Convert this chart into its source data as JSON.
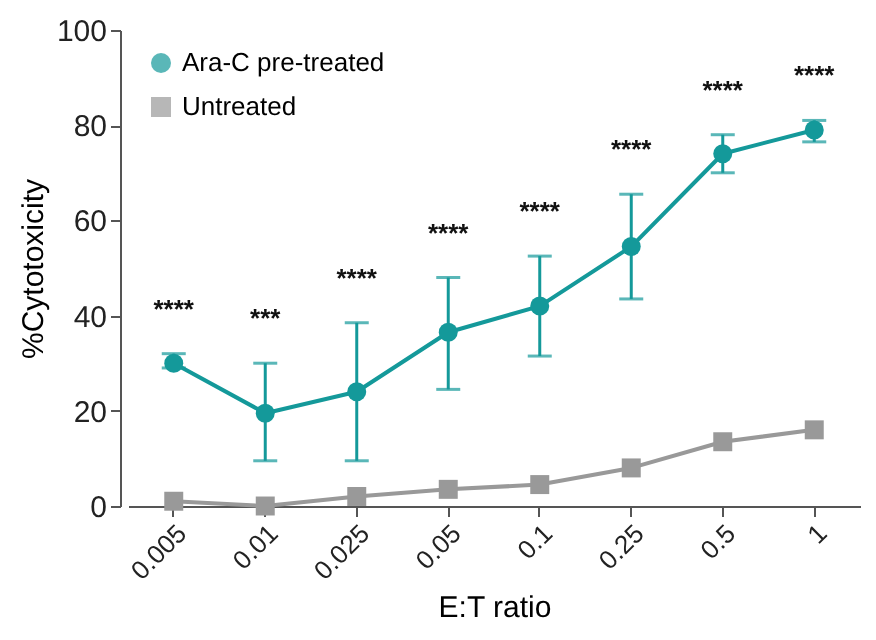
{
  "chart_data": {
    "type": "line",
    "xlabel": "E:T ratio",
    "ylabel": "%Cytotoxicity",
    "categories": [
      "0.005",
      "0.01",
      "0.025",
      "0.05",
      "0.1",
      "0.25",
      "0.5",
      "1"
    ],
    "series": [
      {
        "name": "Ara-C pre-treated",
        "color": "#14999a",
        "marker": "circle",
        "values": [
          30,
          19.5,
          24,
          36.5,
          42,
          54.5,
          74,
          79
        ],
        "errors": [
          [
            29,
            32
          ],
          [
            9.5,
            30
          ],
          [
            9.5,
            38.5
          ],
          [
            24.5,
            48
          ],
          [
            31.5,
            52.5
          ],
          [
            43.5,
            65.5
          ],
          [
            70,
            78
          ],
          [
            76.5,
            81
          ]
        ]
      },
      {
        "name": "Untreated",
        "color": "#999999",
        "marker": "square",
        "values": [
          1,
          0,
          2,
          3.5,
          4.5,
          8,
          13.5,
          16
        ]
      }
    ],
    "ylim": [
      0,
      100
    ],
    "yticks": [
      0,
      20,
      40,
      60,
      80,
      100
    ],
    "grid": false,
    "legend": "top left",
    "line_style": "solid",
    "annotations": [
      "****",
      "***",
      "****",
      "****",
      "****",
      "****",
      "****",
      "****"
    ]
  }
}
